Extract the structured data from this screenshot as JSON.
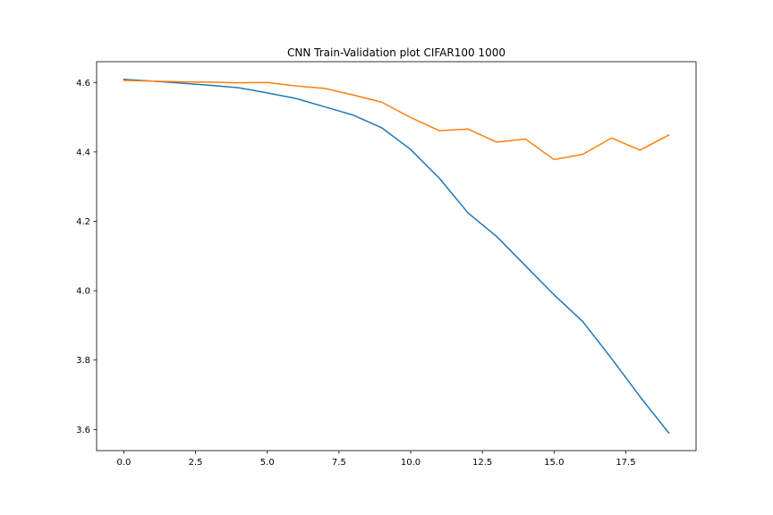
{
  "chart_data": {
    "type": "line",
    "title": "CNN Train-Validation plot CIFAR100 1000",
    "xlabel": "",
    "ylabel": "",
    "xlim": [
      -0.95,
      19.95
    ],
    "ylim": [
      3.539,
      4.66
    ],
    "xticks": [
      0.0,
      2.5,
      5.0,
      7.5,
      10.0,
      12.5,
      15.0,
      17.5
    ],
    "xtick_labels": [
      "0.0",
      "2.5",
      "5.0",
      "7.5",
      "10.0",
      "12.5",
      "15.0",
      "17.5"
    ],
    "yticks": [
      3.6,
      3.8,
      4.0,
      4.2,
      4.4,
      4.6
    ],
    "ytick_labels": [
      "3.6",
      "3.8",
      "4.0",
      "4.2",
      "4.4",
      "4.6"
    ],
    "grid": false,
    "x": [
      0,
      1,
      2,
      3,
      4,
      5,
      6,
      7,
      8,
      9,
      10,
      11,
      12,
      13,
      14,
      15,
      16,
      17,
      18,
      19
    ],
    "series": [
      {
        "color": "#1f77b4",
        "values": [
          4.609,
          4.604,
          4.598,
          4.592,
          4.585,
          4.57,
          4.554,
          4.53,
          4.506,
          4.469,
          4.407,
          4.324,
          4.224,
          4.156,
          4.072,
          3.988,
          3.911,
          3.805,
          3.694,
          3.59
        ]
      },
      {
        "color": "#ff7f0e",
        "values": [
          4.606,
          4.604,
          4.602,
          4.601,
          4.599,
          4.6,
          4.59,
          4.583,
          4.564,
          4.543,
          4.499,
          4.461,
          4.466,
          4.428,
          4.437,
          4.378,
          4.393,
          4.44,
          4.405,
          4.449
        ]
      }
    ]
  }
}
